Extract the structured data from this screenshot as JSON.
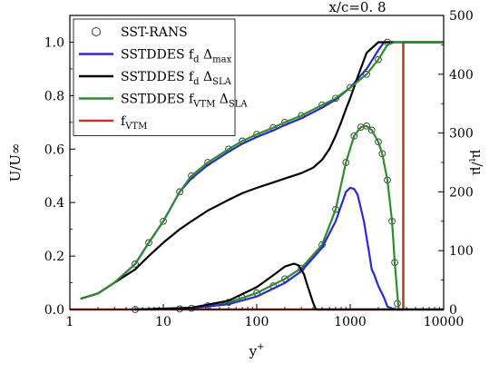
{
  "chart_data": {
    "type": "line",
    "title": "x/c=0. 8",
    "xlabel_main": "y",
    "xlabel_sup": "+",
    "ylabel_left": "U/U∞",
    "ylabel_right_main": "μ",
    "ylabel_right_sub": "t",
    "ylabel_right_tail": "/μ",
    "x_scale": "log",
    "xlim": [
      1,
      10000
    ],
    "ylim_left": [
      0,
      1.1
    ],
    "ylim_right": [
      0,
      500
    ],
    "x_ticks": [
      1,
      10,
      100,
      1000,
      10000
    ],
    "x_tick_labels": [
      "1",
      "10",
      "100",
      "1000",
      "10000"
    ],
    "y_left_ticks": [
      0,
      0.2,
      0.4,
      0.6,
      0.8,
      1.0
    ],
    "y_left_tick_labels": [
      "0.0",
      "0.2",
      "0.4",
      "0.6",
      "0.8",
      "1.0"
    ],
    "y_right_ticks": [
      0,
      100,
      200,
      300,
      400,
      500
    ],
    "y_right_tick_labels": [
      "0",
      "100",
      "200",
      "300",
      "400",
      "500"
    ],
    "grid": false,
    "legend_placement": "top-left",
    "legend": [
      {
        "main": "SST-RANS",
        "sub1": "",
        "mid": "",
        "sub2": "",
        "style": "circles",
        "color": "#333333"
      },
      {
        "main": "SSTDDES f",
        "sub1": "d",
        "mid": " Δ",
        "sub2": "max",
        "style": "line",
        "color": "#2a2ad4"
      },
      {
        "main": "SSTDDES f",
        "sub1": "d",
        "mid": " Δ",
        "sub2": "SLA",
        "style": "line",
        "color": "#000000"
      },
      {
        "main": "SSTDDES f",
        "sub1": "VTM",
        "mid": " Δ",
        "sub2": "SLA",
        "style": "line",
        "color": "#2e8b2e"
      },
      {
        "main": "f",
        "sub1": "VTM",
        "mid": "",
        "sub2": "",
        "style": "line",
        "color": "#c0392b"
      }
    ],
    "series": [
      {
        "name": "SST-RANS",
        "axis": "left",
        "style": "circles",
        "color": "#333333",
        "x": [
          5,
          7,
          10,
          15,
          20,
          30,
          50,
          70,
          100,
          150,
          200,
          300,
          500,
          700,
          1000,
          1500,
          2000,
          2500
        ],
        "y": [
          0.17,
          0.25,
          0.33,
          0.44,
          0.5,
          0.55,
          0.6,
          0.63,
          0.655,
          0.68,
          0.7,
          0.725,
          0.765,
          0.79,
          0.83,
          0.88,
          0.935,
          1.0
        ]
      },
      {
        "name": "SST-RANS",
        "axis": "right",
        "style": "circles",
        "color": "#333333",
        "x": [
          5,
          15,
          20,
          30,
          50,
          70,
          100,
          150,
          200,
          300,
          500,
          700,
          900,
          1100,
          1300,
          1500,
          1700,
          2000,
          2200,
          2500,
          2800,
          3000,
          3200
        ],
        "y": [
          0,
          1,
          2,
          6,
          12,
          20,
          28,
          40,
          52,
          70,
          110,
          170,
          250,
          295,
          310,
          312,
          305,
          285,
          265,
          220,
          150,
          80,
          10
        ]
      },
      {
        "name": "SSTDDES f",
        "axis": "left",
        "style": "line",
        "color": "#2a2ad4",
        "x": [
          1.3,
          2,
          3,
          5,
          7,
          10,
          15,
          20,
          30,
          50,
          70,
          100,
          150,
          200,
          300,
          500,
          700,
          1000,
          1500,
          2000,
          2300,
          10000
        ],
        "y": [
          0.04,
          0.06,
          0.1,
          0.17,
          0.25,
          0.33,
          0.44,
          0.49,
          0.54,
          0.59,
          0.62,
          0.645,
          0.67,
          0.69,
          0.715,
          0.755,
          0.785,
          0.83,
          0.9,
          0.97,
          1.0,
          1.0
        ]
      },
      {
        "name": "SSTDDES f",
        "axis": "right",
        "style": "line",
        "color": "#2a2ad4",
        "x": [
          5,
          20,
          50,
          100,
          200,
          300,
          500,
          700,
          900,
          1000,
          1100,
          1200,
          1400,
          1600,
          1700,
          1800,
          2000,
          2300,
          2500,
          3000,
          10000
        ],
        "y": [
          0,
          2,
          9,
          22,
          45,
          65,
          105,
          150,
          200,
          207,
          205,
          195,
          150,
          95,
          68,
          60,
          40,
          20,
          5,
          0,
          0
        ]
      },
      {
        "name": "SSTDDES f",
        "axis": "left",
        "style": "line",
        "color": "#000000",
        "x": [
          1.3,
          2,
          3,
          5,
          7,
          10,
          15,
          20,
          30,
          50,
          70,
          100,
          150,
          200,
          300,
          400,
          500,
          600,
          700,
          800,
          900,
          1000,
          1200,
          1500,
          2000,
          2500,
          3000,
          10000
        ],
        "y": [
          0.04,
          0.06,
          0.1,
          0.15,
          0.2,
          0.25,
          0.3,
          0.33,
          0.37,
          0.41,
          0.435,
          0.455,
          0.475,
          0.49,
          0.51,
          0.53,
          0.56,
          0.6,
          0.65,
          0.7,
          0.75,
          0.79,
          0.87,
          0.96,
          1.0,
          1.0,
          1.0,
          1.0
        ]
      },
      {
        "name": "SSTDDES f",
        "axis": "right",
        "style": "line",
        "color": "#000000",
        "x": [
          5,
          20,
          50,
          100,
          150,
          200,
          250,
          280,
          320,
          350,
          400,
          430,
          10000
        ],
        "y": [
          0,
          3,
          15,
          38,
          58,
          73,
          78,
          75,
          60,
          40,
          12,
          0,
          0
        ]
      },
      {
        "name": "SSTDDES f",
        "axis": "left",
        "style": "line",
        "color": "#2e8b2e",
        "x": [
          1.3,
          2,
          3,
          5,
          7,
          10,
          15,
          20,
          30,
          50,
          70,
          100,
          150,
          200,
          300,
          500,
          700,
          1000,
          1500,
          2000,
          2500,
          3000,
          10000
        ],
        "y": [
          0.04,
          0.06,
          0.1,
          0.17,
          0.25,
          0.33,
          0.44,
          0.5,
          0.55,
          0.6,
          0.63,
          0.655,
          0.68,
          0.7,
          0.725,
          0.765,
          0.79,
          0.83,
          0.88,
          0.935,
          0.99,
          1.0,
          1.0
        ]
      },
      {
        "name": "SSTDDES f",
        "axis": "right",
        "style": "line",
        "color": "#2e8b2e",
        "x": [
          5,
          15,
          30,
          50,
          100,
          200,
          300,
          500,
          700,
          900,
          1100,
          1300,
          1500,
          1700,
          2000,
          2200,
          2500,
          2800,
          3000,
          3300,
          10000
        ],
        "y": [
          0,
          1,
          6,
          12,
          28,
          52,
          70,
          110,
          170,
          250,
          295,
          310,
          312,
          305,
          285,
          265,
          220,
          150,
          80,
          0,
          0
        ]
      },
      {
        "name": "f",
        "axis": "left",
        "style": "line",
        "color": "#c0392b",
        "x": [
          1,
          3700,
          3700,
          10000
        ],
        "y": [
          0,
          0,
          1.0,
          1.0
        ]
      }
    ]
  }
}
